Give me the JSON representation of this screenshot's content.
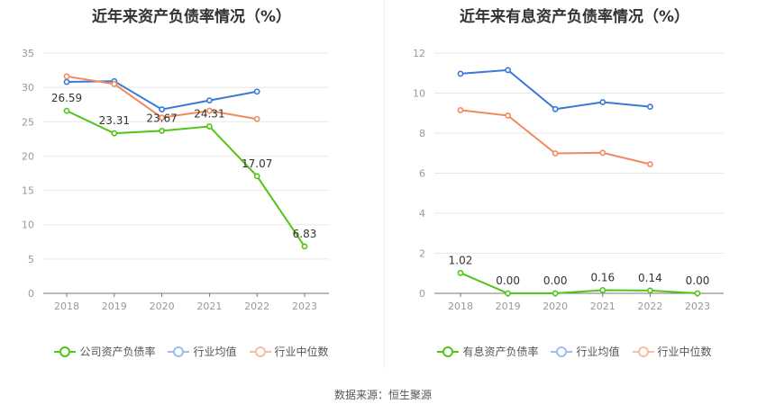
{
  "colors": {
    "company": "#52c41a",
    "industry_avg": "#3a78d8",
    "industry_median": "#f08a5d",
    "axis": "#999999",
    "grid": "#e8e8e8",
    "label": "#333333"
  },
  "source_note": "数据来源：恒生聚源",
  "chart_data": [
    {
      "type": "line",
      "title": "近年来资产负债率情况（%）",
      "categories": [
        "2018",
        "2019",
        "2020",
        "2021",
        "2022",
        "2023"
      ],
      "ylim": [
        0,
        35
      ],
      "yticks": [
        0,
        5,
        10,
        15,
        20,
        25,
        30,
        35
      ],
      "grid": true,
      "legend_position": "bottom",
      "series": [
        {
          "name": "公司资产负债率",
          "role": "company",
          "values": [
            26.59,
            23.31,
            23.67,
            24.31,
            17.07,
            6.83
          ],
          "labels": [
            "26.59",
            "23.31",
            "23.67",
            "24.31",
            "17.07",
            "6.83"
          ]
        },
        {
          "name": "行业均值",
          "role": "industry_avg",
          "values": [
            30.8,
            30.9,
            26.8,
            28.1,
            29.4,
            null
          ]
        },
        {
          "name": "行业中位数",
          "role": "industry_median",
          "values": [
            31.6,
            30.5,
            25.6,
            26.6,
            25.4,
            null
          ]
        }
      ]
    },
    {
      "type": "line",
      "title": "近年来有息资产负债率情况（%）",
      "categories": [
        "2018",
        "2019",
        "2020",
        "2021",
        "2022",
        "2023"
      ],
      "ylim": [
        0,
        12
      ],
      "yticks": [
        0,
        2,
        4,
        6,
        8,
        10,
        12
      ],
      "grid": true,
      "legend_position": "bottom",
      "series": [
        {
          "name": "有息资产负债率",
          "role": "company",
          "values": [
            1.02,
            0.0,
            0.0,
            0.16,
            0.14,
            0.0
          ],
          "labels": [
            "1.02",
            "0.00",
            "0.00",
            "0.16",
            "0.14",
            "0.00"
          ]
        },
        {
          "name": "行业均值",
          "role": "industry_avg",
          "values": [
            10.97,
            11.15,
            9.2,
            9.55,
            9.32,
            null
          ]
        },
        {
          "name": "行业中位数",
          "role": "industry_median",
          "values": [
            9.15,
            8.88,
            6.99,
            7.02,
            6.45,
            null
          ]
        }
      ]
    }
  ]
}
